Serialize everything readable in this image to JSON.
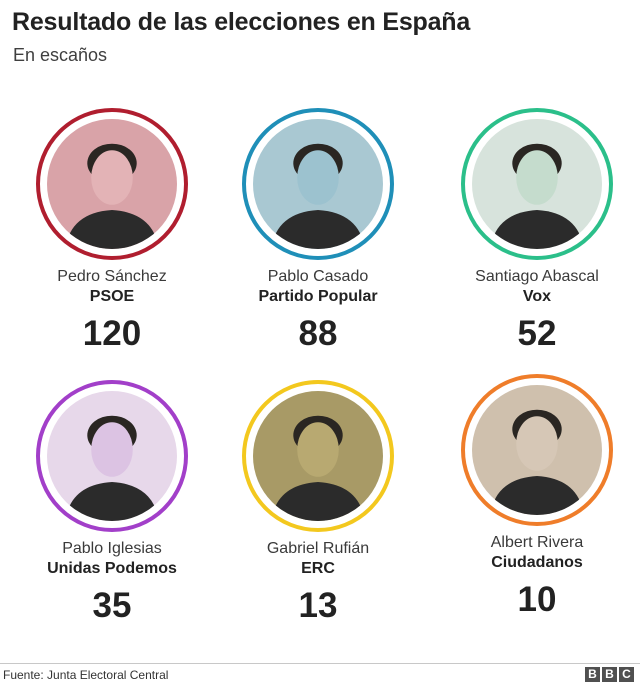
{
  "title": "Resultado de las elecciones en España",
  "subtitle": "En escaños",
  "results": [
    {
      "name": "Pedro Sánchez",
      "party": "PSOE",
      "seats": "120",
      "ring_color": "#b01e2f",
      "tint": "#e3b3b6",
      "bg": "#d9a3a8"
    },
    {
      "name": "Pablo Casado",
      "party": "Partido Popular",
      "seats": "88",
      "ring_color": "#1f8fb8",
      "tint": "#9cc2cf",
      "bg": "#a9c8d2"
    },
    {
      "name": "Santiago Abascal",
      "party": "Vox",
      "seats": "52",
      "ring_color": "#2bbf8a",
      "tint": "#c5dccd",
      "bg": "#d7e3dc"
    },
    {
      "name": "Pablo Iglesias",
      "party": "Unidas Podemos",
      "seats": "35",
      "ring_color": "#a23fc9",
      "tint": "#dcc3e3",
      "bg": "#e7d8ea"
    },
    {
      "name": "Gabriel Rufián",
      "party": "ERC",
      "seats": "13",
      "ring_color": "#f3c81e",
      "tint": "#b8a971",
      "bg": "#a89a66"
    },
    {
      "name": "Albert Rivera",
      "party": "Ciudadanos",
      "seats": "10",
      "ring_color": "#ef7d2a",
      "tint": "#d6c7b6",
      "bg": "#cfc0ad"
    }
  ],
  "footer": {
    "source": "Fuente: Junta Electoral Central",
    "logo_letters": [
      "B",
      "B",
      "C"
    ]
  }
}
